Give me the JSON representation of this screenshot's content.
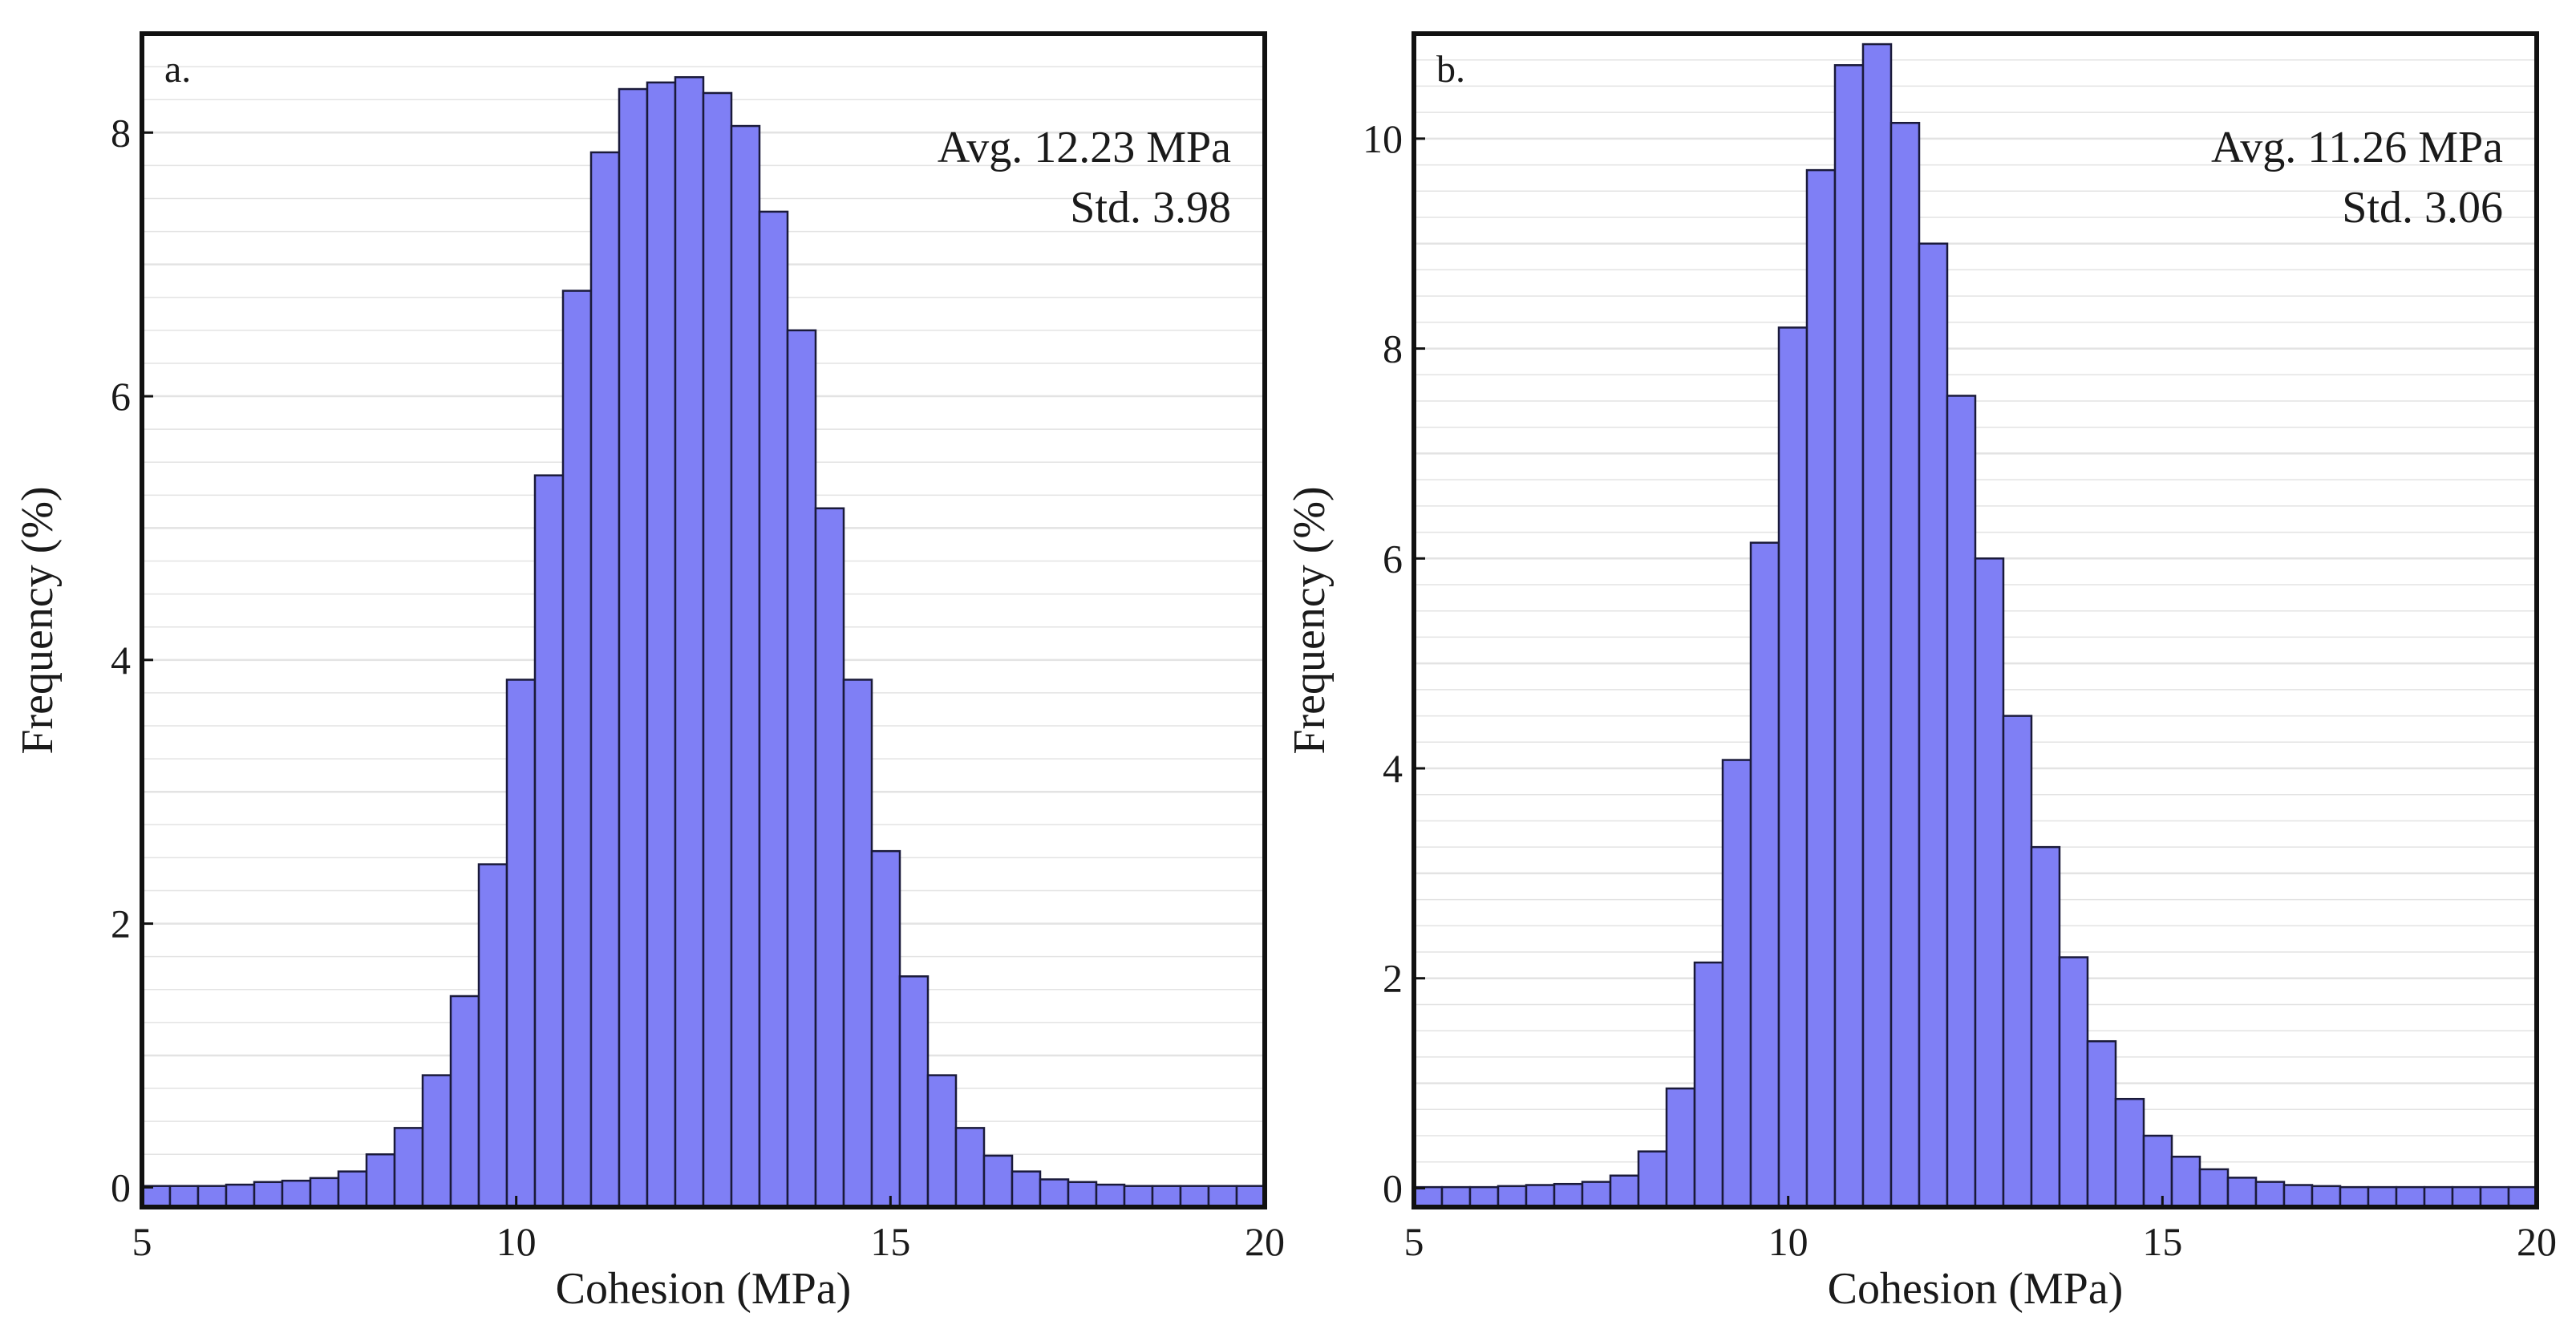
{
  "chart_data": [
    {
      "type": "bar",
      "panel_label": "a.",
      "xlabel": "Cohesion (MPa)",
      "ylabel": "Frequency (%)",
      "xlim": [
        5,
        20
      ],
      "ylim": [
        -0.15,
        8.75
      ],
      "xticks": [
        5,
        10,
        15,
        20
      ],
      "yticks": [
        0,
        2,
        4,
        6,
        8
      ],
      "grid": true,
      "avg_text": "Avg. 12.23 MPa",
      "std_text": "Std. 3.98",
      "bin_edges": [
        5.0,
        5.375,
        5.75,
        6.125,
        6.5,
        6.875,
        7.25,
        7.625,
        8.0,
        8.375,
        8.75,
        9.125,
        9.5,
        9.875,
        10.25,
        10.625,
        11.0,
        11.375,
        11.75,
        12.125,
        12.5,
        12.875,
        13.25,
        13.625,
        14.0,
        14.375,
        14.75,
        15.125,
        15.5,
        15.875,
        16.25,
        16.625,
        17.0,
        17.375,
        17.75,
        18.125,
        18.5,
        18.875,
        19.25,
        19.625,
        20.0
      ],
      "values": [
        0.01,
        0.01,
        0.01,
        0.02,
        0.04,
        0.05,
        0.07,
        0.12,
        0.25,
        0.45,
        0.85,
        1.45,
        2.45,
        3.85,
        5.4,
        6.8,
        7.85,
        8.33,
        8.38,
        8.42,
        8.3,
        8.05,
        7.4,
        6.5,
        5.15,
        3.85,
        2.55,
        1.6,
        0.85,
        0.45,
        0.24,
        0.12,
        0.06,
        0.04,
        0.02,
        0.01,
        0.01,
        0.01,
        0.01,
        0.01
      ]
    },
    {
      "type": "bar",
      "panel_label": "b.",
      "xlabel": "Cohesion (MPa)",
      "ylabel": "Frequency (%)",
      "xlim": [
        5,
        20
      ],
      "ylim": [
        -0.18,
        11.0
      ],
      "xticks": [
        5,
        10,
        15,
        20
      ],
      "yticks": [
        0,
        2,
        4,
        6,
        8,
        10
      ],
      "grid": true,
      "avg_text": "Avg. 11.26 MPa",
      "std_text": "Std. 3.06",
      "bin_edges": [
        5.0,
        5.375,
        5.75,
        6.125,
        6.5,
        6.875,
        7.25,
        7.625,
        8.0,
        8.375,
        8.75,
        9.125,
        9.5,
        9.875,
        10.25,
        10.625,
        11.0,
        11.375,
        11.75,
        12.125,
        12.5,
        12.875,
        13.25,
        13.625,
        14.0,
        14.375,
        14.75,
        15.125,
        15.5,
        15.875,
        16.25,
        16.625,
        17.0,
        17.375,
        17.75,
        18.125,
        18.5,
        18.875,
        19.25,
        19.625,
        20.0
      ],
      "values": [
        0.01,
        0.01,
        0.01,
        0.02,
        0.03,
        0.04,
        0.06,
        0.12,
        0.35,
        0.95,
        2.15,
        4.08,
        6.15,
        8.2,
        9.7,
        10.7,
        10.9,
        10.15,
        9.0,
        7.55,
        6.0,
        4.5,
        3.25,
        2.2,
        1.4,
        0.85,
        0.5,
        0.3,
        0.18,
        0.1,
        0.06,
        0.03,
        0.02,
        0.01,
        0.01,
        0.01,
        0.01,
        0.01,
        0.01,
        0.01
      ]
    }
  ],
  "colors": {
    "bar_fill": "#7f7ff5",
    "bar_stroke": "#1a1a3a",
    "frame": "#111111",
    "grid": "#e3e3e3"
  }
}
